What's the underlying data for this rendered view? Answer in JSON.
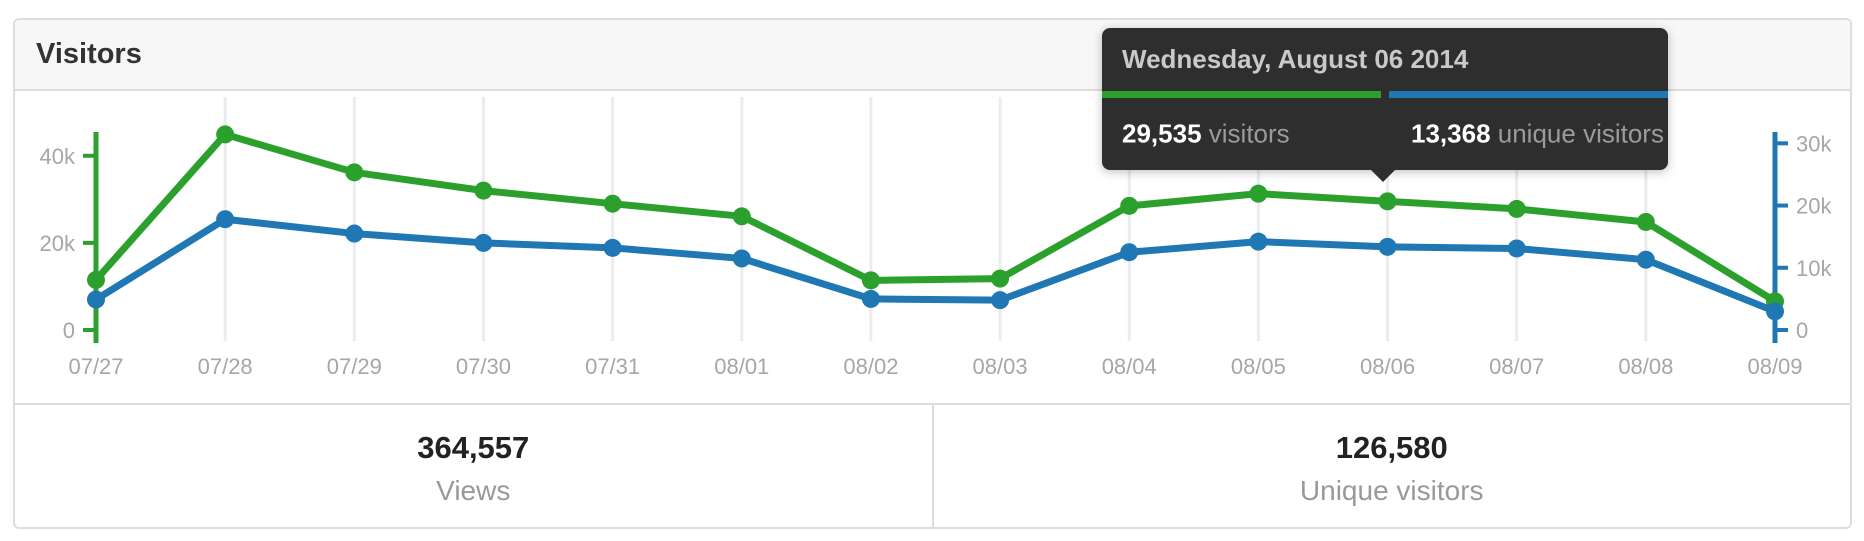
{
  "panel": {
    "title": "Visitors"
  },
  "colors": {
    "views": "#2ca02c",
    "unique": "#1f77b4",
    "grid": "#ececec",
    "axis_label": "#a6a6a6",
    "tooltip_bg": "#2e2e2e"
  },
  "tooltip": {
    "date": "Wednesday, August 06 2014",
    "views": {
      "value": "29,535",
      "label": "visitors"
    },
    "unique": {
      "value": "13,368",
      "label": "unique visitors"
    }
  },
  "summary": {
    "views": {
      "value": "364,557",
      "label": "Views"
    },
    "unique": {
      "value": "126,580",
      "label": "Unique visitors"
    }
  },
  "chart_data": {
    "type": "line",
    "title": "Visitors",
    "categories": [
      "07/27",
      "07/28",
      "07/29",
      "07/30",
      "07/31",
      "08/01",
      "08/02",
      "08/03",
      "08/04",
      "08/05",
      "08/06",
      "08/07",
      "08/08",
      "08/09"
    ],
    "series": [
      {
        "name": "visitors",
        "axis": "left",
        "color": "#2ca02c",
        "values": [
          11500,
          44900,
          36200,
          32000,
          29000,
          26100,
          11400,
          11800,
          28500,
          31300,
          29535,
          27800,
          24800,
          6600
        ]
      },
      {
        "name": "unique-visitors",
        "axis": "right",
        "color": "#1f77b4",
        "values": [
          4900,
          17800,
          15500,
          14000,
          13200,
          11500,
          5000,
          4800,
          12500,
          14200,
          13368,
          13100,
          11300,
          3000
        ]
      }
    ],
    "left_axis": {
      "tick_labels": [
        "0",
        "20k",
        "40k"
      ],
      "tick_values": [
        0,
        20000,
        40000
      ],
      "ylim": [
        0,
        45000
      ]
    },
    "right_axis": {
      "tick_labels": [
        "0",
        "10k",
        "20k",
        "30k"
      ],
      "tick_values": [
        0,
        10000,
        20000,
        30000
      ],
      "ylim": [
        0,
        31500
      ]
    },
    "highlight_index": 10,
    "grid": true,
    "legend": "none"
  }
}
